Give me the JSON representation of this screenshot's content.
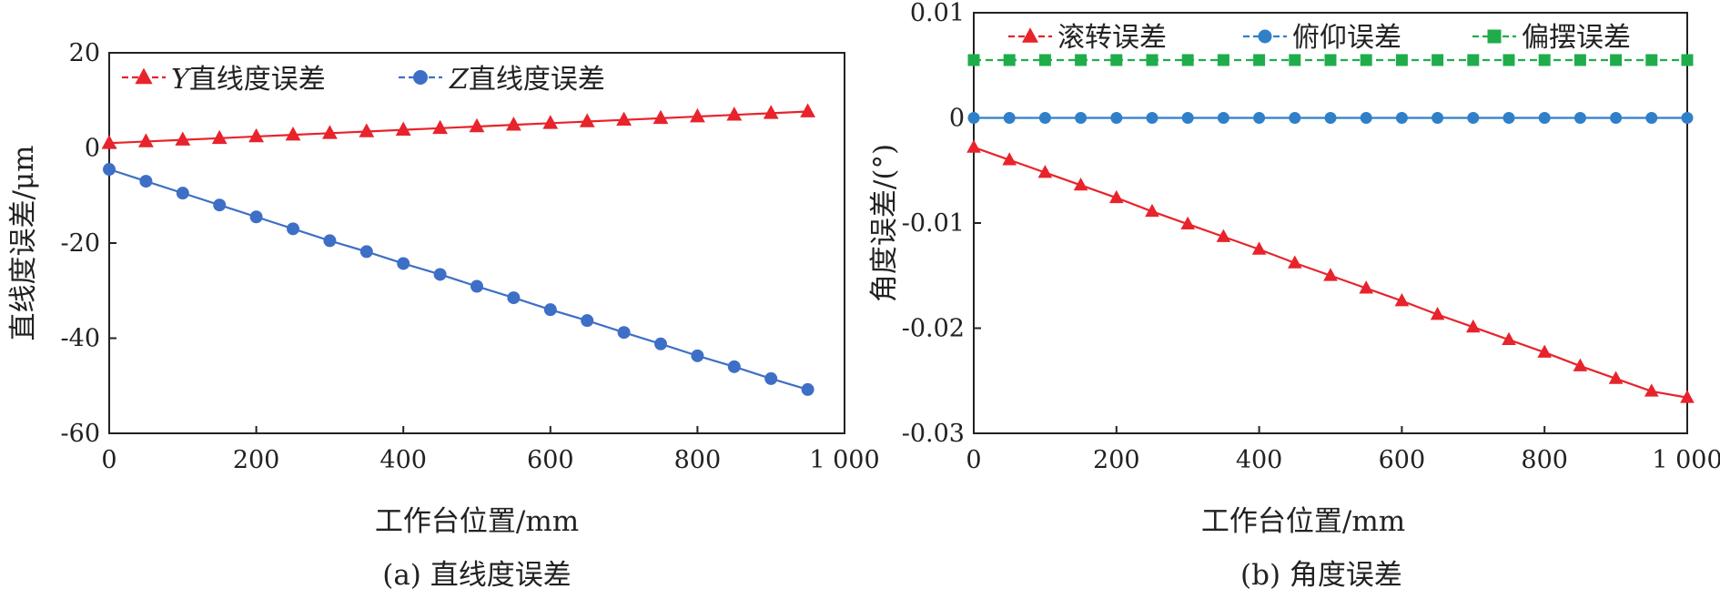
{
  "chart_data": [
    {
      "type": "line",
      "caption": "(a) 直线度误差",
      "xlabel": "工作台位置/mm",
      "ylabel": "直线度误差/μm",
      "xlim": [
        0,
        1000
      ],
      "ylim": [
        -60,
        20
      ],
      "xticks": [
        "0",
        "200",
        "400",
        "600",
        "800",
        "1 000"
      ],
      "yticks": [
        "20",
        "0",
        "-20",
        "-40",
        "-60"
      ],
      "legend_position": "top-left",
      "x": [
        0,
        50,
        100,
        150,
        200,
        250,
        300,
        350,
        400,
        450,
        500,
        550,
        600,
        650,
        700,
        750,
        800,
        850,
        900,
        950
      ],
      "series": [
        {
          "name_var": "Y",
          "name": "直线度误差",
          "marker": "triangle",
          "color": "#e8232b",
          "values": [
            1.0,
            1.35,
            1.7,
            2.05,
            2.4,
            2.75,
            3.1,
            3.45,
            3.8,
            4.15,
            4.5,
            4.85,
            5.2,
            5.55,
            5.9,
            6.25,
            6.6,
            6.95,
            7.3,
            7.65
          ]
        },
        {
          "name_var": "Z",
          "name": "直线度误差",
          "marker": "circle",
          "color": "#3d6fc6",
          "values": [
            -4.5,
            -7.0,
            -9.5,
            -12.0,
            -14.5,
            -17.0,
            -19.5,
            -21.8,
            -24.3,
            -26.6,
            -29.1,
            -31.5,
            -34.0,
            -36.3,
            -38.8,
            -41.2,
            -43.7,
            -46.0,
            -48.5,
            -50.8
          ]
        }
      ]
    },
    {
      "type": "line",
      "caption": "(b) 角度误差",
      "xlabel": "工作台位置/mm",
      "ylabel": "角度误差/(°)",
      "xlim": [
        0,
        1000
      ],
      "ylim": [
        -0.03,
        0.01
      ],
      "xticks": [
        "0",
        "200",
        "400",
        "600",
        "800",
        "1 000"
      ],
      "yticks": [
        "0.01",
        "0",
        "-0.01",
        "-0.02",
        "-0.03"
      ],
      "legend_position": "top",
      "x": [
        0,
        50,
        100,
        150,
        200,
        250,
        300,
        350,
        400,
        450,
        500,
        550,
        600,
        650,
        700,
        750,
        800,
        850,
        900,
        950,
        1000
      ],
      "series": [
        {
          "name": "滚转误差",
          "marker": "triangle",
          "color": "#e8232b",
          "values": [
            -0.0028,
            -0.004,
            -0.0052,
            -0.0064,
            -0.0076,
            -0.0089,
            -0.0101,
            -0.0113,
            -0.0125,
            -0.0138,
            -0.015,
            -0.0162,
            -0.0174,
            -0.0187,
            -0.0199,
            -0.0211,
            -0.0223,
            -0.0236,
            -0.0248,
            -0.026,
            -0.0266
          ]
        },
        {
          "name": "俯仰误差",
          "marker": "circle",
          "color": "#2f7fc9",
          "values": [
            0,
            0,
            0,
            0,
            0,
            0,
            0,
            0,
            0,
            0,
            0,
            0,
            0,
            0,
            0,
            0,
            0,
            0,
            0,
            0,
            0
          ]
        },
        {
          "name": "偏摆误差",
          "marker": "square",
          "color": "#1fad4c",
          "values": [
            0.0055,
            0.0055,
            0.0055,
            0.0055,
            0.0055,
            0.0055,
            0.0055,
            0.0055,
            0.0055,
            0.0055,
            0.0055,
            0.0055,
            0.0055,
            0.0055,
            0.0055,
            0.0055,
            0.0055,
            0.0055,
            0.0055,
            0.0055,
            0.0055
          ]
        }
      ]
    }
  ]
}
